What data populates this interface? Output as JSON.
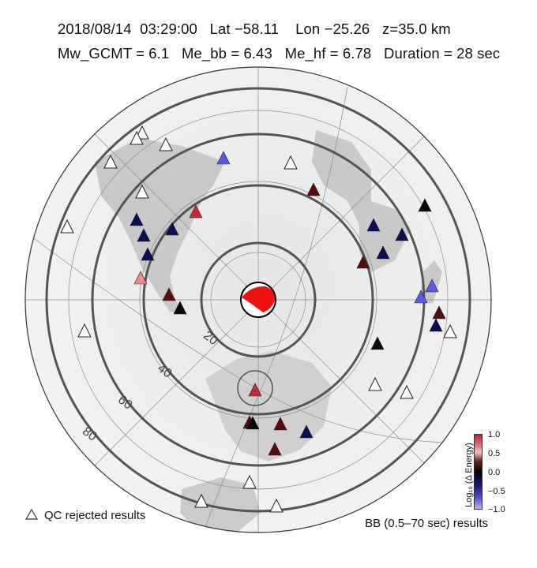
{
  "header": {
    "line1": "2018/08/14  03:29:00   Lat −58.11    Lon −25.26   z=35.0 km",
    "line2": "Mw_GCMT = 6.1   Me_bb = 6.43   Me_hf = 6.78   Duration = 28 sec"
  },
  "rings": [
    {
      "label": "20"
    },
    {
      "label": "40"
    },
    {
      "label": "60"
    },
    {
      "label": "80"
    }
  ],
  "colorbar": {
    "ticks": [
      "1.0",
      "0.5",
      "0.0",
      "−0.5",
      "−1.0"
    ],
    "label": "Log₁₀ (Δ Energy)"
  },
  "legend": {
    "qc_rejected": "QC rejected results",
    "bb_results": "BB (0.5–70 sec) results"
  },
  "colors": {
    "strong_red": "#c62b33",
    "light_red": "#f08a8f",
    "dark_red": "#5a0c0c",
    "black": "#0a0a0a",
    "navy": "#0d0d55",
    "blue": "#5a5ae6",
    "white": "#ffffff",
    "beachball_red": "#ee1111"
  },
  "stations": [
    {
      "color": "white"
    },
    {
      "color": "white"
    },
    {
      "color": "white"
    },
    {
      "color": "white"
    },
    {
      "color": "blue"
    },
    {
      "color": "white"
    },
    {
      "color": "dark_red"
    },
    {
      "color": "white"
    },
    {
      "color": "navy"
    },
    {
      "color": "strong_red"
    },
    {
      "color": "navy"
    },
    {
      "color": "navy"
    },
    {
      "color": "navy"
    },
    {
      "color": "light_red"
    },
    {
      "color": "dark_red"
    },
    {
      "color": "black"
    },
    {
      "color": "white"
    },
    {
      "color": "white"
    },
    {
      "color": "navy"
    },
    {
      "color": "navy"
    },
    {
      "color": "black"
    },
    {
      "color": "navy"
    },
    {
      "color": "navy"
    },
    {
      "color": "dark_red"
    },
    {
      "color": "blue"
    },
    {
      "color": "blue"
    },
    {
      "color": "dark_red"
    },
    {
      "color": "white"
    },
    {
      "color": "black"
    },
    {
      "color": "white"
    },
    {
      "color": "white"
    },
    {
      "color": "strong_red"
    },
    {
      "color": "dark_red"
    },
    {
      "color": "black"
    },
    {
      "color": "dark_red"
    },
    {
      "color": "navy"
    },
    {
      "color": "dark_red"
    },
    {
      "color": "white"
    },
    {
      "color": "white"
    },
    {
      "color": "white"
    }
  ]
}
